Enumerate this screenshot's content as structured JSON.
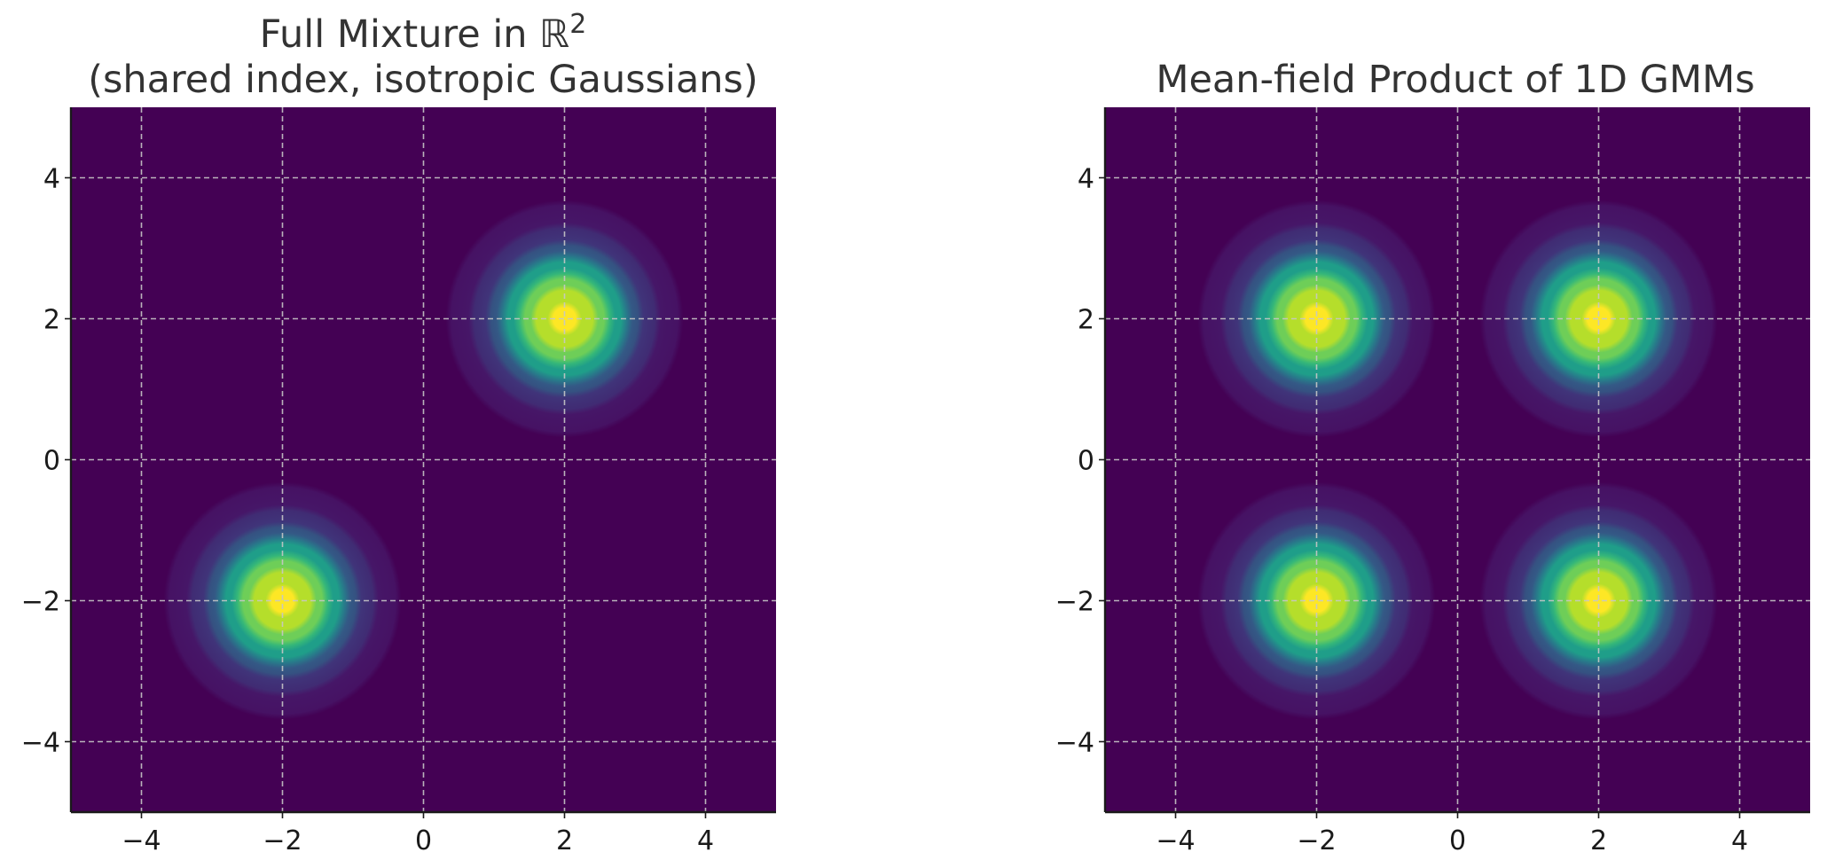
{
  "chart_data": [
    {
      "type": "heatmap",
      "title_line1": "Full Mixture in ℝ",
      "title_sup": "2",
      "title_line2": "(shared index, isotropic Gaussians)",
      "xlim": [
        -5,
        5
      ],
      "ylim": [
        -5,
        5
      ],
      "xticks": [
        -4,
        -2,
        0,
        2,
        4
      ],
      "yticks": [
        -4,
        -2,
        0,
        2,
        4
      ],
      "xtick_labels": [
        "−4",
        "−2",
        "0",
        "2",
        "4"
      ],
      "ytick_labels": [
        "−4",
        "−2",
        "0",
        "2",
        "4"
      ],
      "grid": true,
      "colormap": "viridis",
      "components": [
        {
          "mean": [
            2,
            2
          ],
          "sigma": 0.7
        },
        {
          "mean": [
            -2,
            -2
          ],
          "sigma": 0.7
        }
      ]
    },
    {
      "type": "heatmap",
      "title_line1": "Mean-field Product of 1D GMMs",
      "xlim": [
        -5,
        5
      ],
      "ylim": [
        -5,
        5
      ],
      "xticks": [
        -4,
        -2,
        0,
        2,
        4
      ],
      "yticks": [
        -4,
        -2,
        0,
        2,
        4
      ],
      "xtick_labels": [
        "−4",
        "−2",
        "0",
        "2",
        "4"
      ],
      "ytick_labels": [
        "−4",
        "−2",
        "0",
        "2",
        "4"
      ],
      "grid": true,
      "colormap": "viridis",
      "components": [
        {
          "mean": [
            -2,
            2
          ],
          "sigma": 0.7
        },
        {
          "mean": [
            2,
            2
          ],
          "sigma": 0.7
        },
        {
          "mean": [
            -2,
            -2
          ],
          "sigma": 0.7
        },
        {
          "mean": [
            2,
            -2
          ],
          "sigma": 0.7
        }
      ]
    }
  ],
  "colors": {
    "viridis": [
      "#440154",
      "#482878",
      "#3e4989",
      "#31688e",
      "#26828e",
      "#1f9e89",
      "#35b779",
      "#6ece58",
      "#b5de2b",
      "#fde725"
    ],
    "grid": "#c7c7c7",
    "spine": "#1a1a1a"
  }
}
